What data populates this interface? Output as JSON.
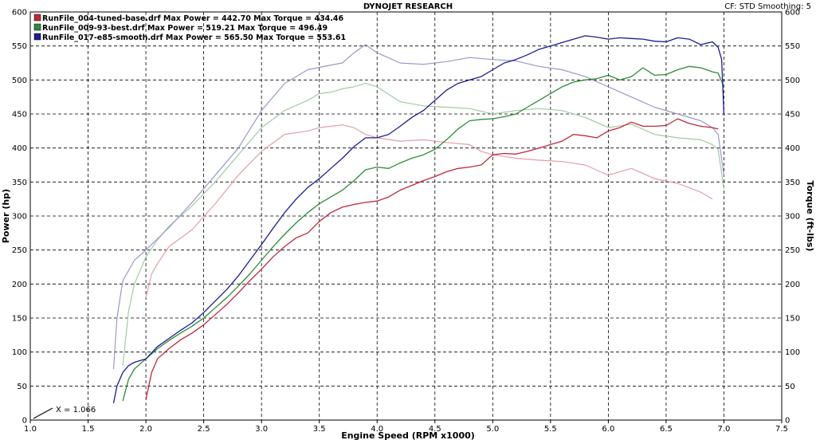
{
  "chart_data": {
    "type": "line",
    "title": "DYNOJET RESEARCH",
    "header_right": "CF: STD   Smoothing: 5",
    "xlabel": "Engine Speed (RPM x1000)",
    "ylabel_left": "Power (hp)",
    "ylabel_right": "Torque (ft-lbs)",
    "xlim": [
      1.0,
      7.5
    ],
    "ylim": [
      0,
      600
    ],
    "x_ticks": [
      "1.0",
      "1.5",
      "2.0",
      "2.5",
      "3.0",
      "3.5",
      "4.0",
      "4.5",
      "5.0",
      "5.5",
      "6.0",
      "6.5",
      "7.0",
      "7.5"
    ],
    "y_ticks": [
      "0",
      "50",
      "100",
      "150",
      "200",
      "250",
      "300",
      "350",
      "400",
      "450",
      "500",
      "550",
      "600"
    ],
    "cursor_label": "X = 1.066",
    "grid": true,
    "legend_position": "top-left",
    "series": [
      {
        "name": "RunFile_004-tuned-base.drf",
        "legend": "RunFile_004-tuned-base.drf Max Power = 442.70    Max Torque = 434.46",
        "color": "#c0283a",
        "power": {
          "x": [
            2.0,
            2.05,
            2.1,
            2.2,
            2.3,
            2.4,
            2.5,
            2.6,
            2.7,
            2.8,
            2.9,
            3.0,
            3.1,
            3.2,
            3.3,
            3.4,
            3.5,
            3.6,
            3.7,
            3.8,
            3.9,
            4.0,
            4.1,
            4.2,
            4.3,
            4.4,
            4.5,
            4.6,
            4.7,
            4.8,
            4.9,
            5.0,
            5.1,
            5.2,
            5.3,
            5.4,
            5.5,
            5.6,
            5.7,
            5.8,
            5.9,
            6.0,
            6.1,
            6.2,
            6.3,
            6.4,
            6.5,
            6.6,
            6.7,
            6.8,
            6.9,
            6.95
          ],
          "y": [
            30,
            70,
            90,
            105,
            118,
            128,
            140,
            155,
            170,
            187,
            205,
            222,
            240,
            255,
            268,
            275,
            292,
            305,
            313,
            317,
            320,
            322,
            328,
            338,
            345,
            352,
            358,
            365,
            370,
            372,
            375,
            390,
            392,
            391,
            395,
            400,
            405,
            410,
            420,
            418,
            415,
            425,
            430,
            438,
            432,
            432,
            433,
            443,
            436,
            432,
            430,
            428
          ]
        },
        "torque": {
          "x": [
            2.0,
            2.05,
            2.1,
            2.2,
            2.4,
            2.6,
            2.8,
            3.0,
            3.2,
            3.4,
            3.5,
            3.6,
            3.7,
            3.8,
            3.9,
            4.0,
            4.2,
            4.4,
            4.6,
            4.8,
            4.9,
            5.0,
            5.2,
            5.4,
            5.6,
            5.8,
            6.0,
            6.2,
            6.4,
            6.6,
            6.8,
            6.9
          ],
          "y": [
            180,
            215,
            230,
            255,
            280,
            318,
            360,
            395,
            420,
            425,
            430,
            432,
            434,
            430,
            420,
            415,
            410,
            412,
            408,
            405,
            395,
            390,
            385,
            382,
            380,
            375,
            360,
            370,
            355,
            348,
            335,
            325
          ]
        }
      },
      {
        "name": "RunFile_009-93-best.drf",
        "legend": "RunFile_009-93-best.drf Max Power = 519.21    Max Torque = 496.49",
        "color": "#2e8b3a",
        "power": {
          "x": [
            1.8,
            1.85,
            1.9,
            2.0,
            2.1,
            2.2,
            2.3,
            2.4,
            2.5,
            2.6,
            2.7,
            2.8,
            2.9,
            3.0,
            3.1,
            3.2,
            3.3,
            3.4,
            3.5,
            3.6,
            3.7,
            3.8,
            3.9,
            4.0,
            4.1,
            4.2,
            4.3,
            4.4,
            4.5,
            4.6,
            4.7,
            4.8,
            4.9,
            5.0,
            5.1,
            5.2,
            5.3,
            5.4,
            5.5,
            5.6,
            5.7,
            5.8,
            5.9,
            6.0,
            6.1,
            6.2,
            6.3,
            6.4,
            6.5,
            6.6,
            6.7,
            6.8,
            6.9,
            6.95,
            7.0
          ],
          "y": [
            28,
            60,
            75,
            90,
            105,
            117,
            128,
            138,
            150,
            165,
            180,
            197,
            215,
            235,
            255,
            273,
            290,
            305,
            318,
            328,
            338,
            352,
            368,
            372,
            370,
            378,
            385,
            390,
            398,
            412,
            428,
            440,
            442,
            443,
            446,
            450,
            460,
            470,
            480,
            490,
            497,
            500,
            502,
            507,
            500,
            505,
            518,
            507,
            508,
            515,
            520,
            518,
            512,
            510,
            490
          ]
        },
        "torque": {
          "x": [
            1.8,
            1.85,
            1.9,
            2.0,
            2.1,
            2.2,
            2.4,
            2.6,
            2.8,
            3.0,
            3.2,
            3.4,
            3.5,
            3.6,
            3.7,
            3.8,
            3.9,
            4.0,
            4.2,
            4.4,
            4.6,
            4.8,
            5.0,
            5.2,
            5.4,
            5.6,
            5.8,
            6.0,
            6.2,
            6.4,
            6.6,
            6.8,
            6.9,
            6.95,
            7.0
          ],
          "y": [
            80,
            160,
            200,
            240,
            265,
            285,
            315,
            350,
            390,
            430,
            455,
            470,
            480,
            482,
            487,
            490,
            495,
            490,
            468,
            462,
            460,
            458,
            450,
            455,
            458,
            455,
            445,
            430,
            435,
            420,
            415,
            412,
            405,
            398,
            340
          ]
        }
      },
      {
        "name": "RunFile_017-e85-smooth.drf",
        "legend": "RunFile_017-e85-smooth.drf Max Power = 565.50    Max Torque = 553.61",
        "color": "#1c1c90",
        "power": {
          "x": [
            1.72,
            1.75,
            1.8,
            1.85,
            1.9,
            2.0,
            2.1,
            2.2,
            2.3,
            2.4,
            2.5,
            2.6,
            2.7,
            2.8,
            2.9,
            3.0,
            3.1,
            3.2,
            3.3,
            3.4,
            3.5,
            3.6,
            3.7,
            3.8,
            3.9,
            4.0,
            4.1,
            4.2,
            4.3,
            4.4,
            4.5,
            4.6,
            4.7,
            4.8,
            4.9,
            5.0,
            5.1,
            5.2,
            5.3,
            5.4,
            5.5,
            5.6,
            5.7,
            5.8,
            5.9,
            6.0,
            6.1,
            6.2,
            6.3,
            6.4,
            6.5,
            6.6,
            6.7,
            6.8,
            6.9,
            6.95,
            6.98,
            7.0
          ],
          "y": [
            25,
            50,
            70,
            80,
            85,
            90,
            108,
            120,
            132,
            143,
            158,
            175,
            192,
            212,
            235,
            258,
            282,
            305,
            325,
            342,
            355,
            370,
            385,
            402,
            415,
            415,
            420,
            432,
            445,
            455,
            470,
            485,
            495,
            500,
            505,
            515,
            525,
            530,
            537,
            545,
            550,
            555,
            560,
            565,
            563,
            560,
            562,
            561,
            560,
            557,
            556,
            562,
            560,
            552,
            556,
            548,
            530,
            448
          ]
        },
        "torque": {
          "x": [
            1.72,
            1.75,
            1.8,
            1.9,
            2.0,
            2.2,
            2.4,
            2.6,
            2.8,
            3.0,
            3.2,
            3.4,
            3.6,
            3.7,
            3.8,
            3.9,
            4.0,
            4.2,
            4.4,
            4.6,
            4.8,
            5.0,
            5.2,
            5.4,
            5.6,
            5.8,
            6.0,
            6.2,
            6.4,
            6.6,
            6.8,
            6.9,
            6.95,
            7.0
          ],
          "y": [
            75,
            150,
            205,
            235,
            250,
            283,
            320,
            360,
            400,
            455,
            495,
            515,
            522,
            525,
            540,
            552,
            540,
            525,
            523,
            527,
            533,
            530,
            528,
            520,
            515,
            505,
            490,
            475,
            460,
            450,
            440,
            430,
            420,
            360
          ]
        }
      }
    ]
  }
}
